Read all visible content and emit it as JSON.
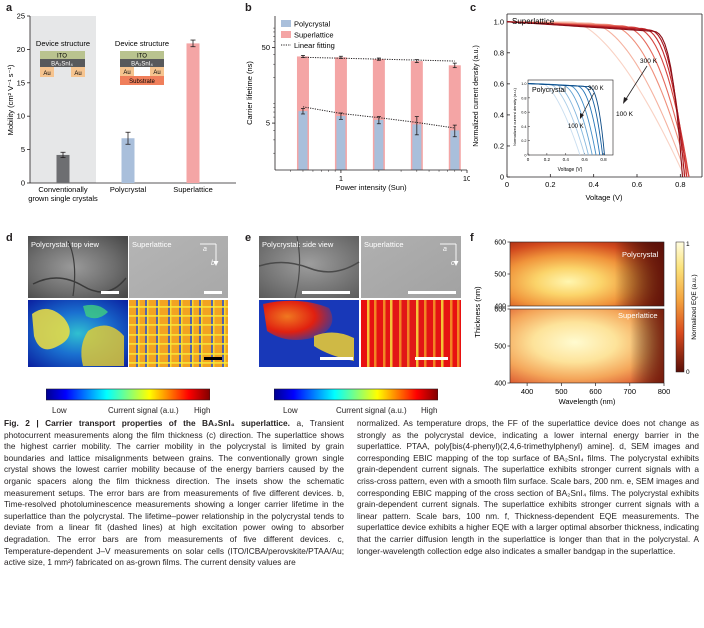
{
  "panel_letters": [
    "a",
    "b",
    "c",
    "d",
    "e",
    "f"
  ],
  "panel_a": {
    "ylabel": "Mobility (cm² V⁻¹ s⁻¹)",
    "yticks": [
      "0",
      "5",
      "10",
      "15",
      "20",
      "25"
    ],
    "inset_left": {
      "title": "Device structure",
      "layers": [
        "ITO",
        "BA₂SnI₄",
        "Au",
        "Au"
      ]
    },
    "inset_right": {
      "title": "Device structure",
      "layers": [
        "ITO",
        "BA₂SnI₄",
        "Au",
        "Au",
        "Substrate"
      ]
    },
    "categories": [
      "Conventionally grown single crystals",
      "Polycrystal",
      "Superlattice"
    ],
    "category_lines": [
      [
        "Conventionally",
        "grown single crystals"
      ],
      [
        "Polycrystal"
      ],
      [
        "Superlattice"
      ]
    ]
  },
  "panel_b": {
    "ylabel": "Carrier lifetime (ns)",
    "xlabel": "Power intensity (Sun)",
    "yticks": [
      "5",
      "50"
    ],
    "xticks": [
      "1",
      "10"
    ],
    "legend": [
      "Polycrystal",
      "Superlattice",
      "Linear fitting"
    ]
  },
  "panel_c": {
    "ylabel": "Normalized current density (a.u.)",
    "xlabel": "Voltage (V)",
    "yticks": [
      "0",
      "0.2",
      "0.4",
      "0.6",
      "0.8",
      "1.0"
    ],
    "xticks": [
      "0",
      "0.2",
      "0.4",
      "0.6",
      "0.8"
    ],
    "label_main": "Superlattice",
    "arrow_main": [
      "300 K",
      "100 K"
    ],
    "inset": {
      "label": "Polycrystal",
      "ylabel": "Normalized current density (a.u.)",
      "xlabel": "Voltage (V)",
      "yticks": [
        "0",
        "0.2",
        "0.4",
        "0.6",
        "0.8",
        "1.0"
      ],
      "xticks": [
        "0",
        "0.2",
        "0.4",
        "0.6",
        "0.8"
      ],
      "arrow": [
        "300 K",
        "100 K"
      ]
    }
  },
  "panel_d": {
    "titles": [
      "Polycrystal: top view",
      "Superlattice"
    ],
    "axis_a": "a",
    "axis_b": "b"
  },
  "panel_e": {
    "titles": [
      "Polycrystal: side view",
      "Superlattice"
    ],
    "axis_a": "a",
    "axis_c": "c"
  },
  "colorbar_de": {
    "low": "Low",
    "mid": "Current signal (a.u.)",
    "high": "High"
  },
  "panel_f": {
    "ylabel": "Thickness (nm)",
    "xlabel": "Wavelength (nm)",
    "yticks_top": [
      "600",
      "500",
      "400"
    ],
    "yticks_bottom": [
      "600",
      "500",
      "400"
    ],
    "xticks": [
      "400",
      "500",
      "600",
      "700",
      "800"
    ],
    "label_top": "Polycrystal",
    "label_bottom": "Superlattice",
    "cbar_label": "Normalized EQE (a.u.)",
    "cbar_top": "1",
    "cbar_bottom": "0"
  },
  "caption": {
    "title": "Fig. 2 | Carrier transport properties of the BA₂SnI₄ superlattice.",
    "left": "a, Transient photocurrent measurements along the film thickness (c) direction. The superlattice shows the highest carrier mobility. The carrier mobility in the polycrystal is limited by grain boundaries and lattice misalignments between grains. The conventionally grown single crystal shows the lowest carrier mobility because of the energy barriers caused by the organic spacers along the film thickness direction. The insets show the schematic measurement setups. The error bars are from measurements of five different devices. b, Time-resolved photoluminescence measurements showing a longer carrier lifetime in the superlattice than the polycrystal. The lifetime–power relationship in the polycrystal tends to deviate from a linear fit (dashed lines) at high excitation power owing to absorber degradation. The error bars are from measurements of five different devices. c, Temperature-dependent J–V measurements on solar cells (ITO/ICBA/perovskite/PTAA/Au; active size, 1 mm²) fabricated on as-grown films. The current density values are",
    "right": "normalized. As temperature drops, the FF of the superlattice device does not change as strongly as the polycrystal device, indicating a lower internal energy barrier in the superlattice. PTAA, poly[bis(4-phenyl)(2,4,6-trimethylphenyl) amine]. d, SEM images and corresponding EBIC mapping of the top surface of BA₂SnI₄ films. The polycrystal exhibits grain-dependent current signals. The superlattice exhibits stronger current signals with a criss-cross pattern, even with a smooth film surface. Scale bars, 200 nm. e, SEM images and corresponding EBIC mapping of the cross section of BA₂SnI₄ films. The polycrystal exhibits grain-dependent current signals. The superlattice exhibits stronger current signals with a linear pattern. Scale bars, 100 nm. f, Thickness-dependent EQE measurements. The superlattice device exhibits a higher EQE with a larger optimal absorber thickness, indicating that the carrier diffusion length in the superlattice is longer than that in the polycrystal. A longer-wavelength collection edge also indicates a smaller bandgap in the superlattice."
  },
  "chart_data": [
    {
      "type": "bar",
      "panel": "a",
      "categories": [
        "Conventionally grown single crystals",
        "Polycrystal",
        "Superlattice"
      ],
      "values": [
        4.2,
        6.7,
        20.9
      ],
      "errors": [
        0.4,
        0.9,
        0.5
      ],
      "ylabel": "Mobility (cm² V⁻¹ s⁻¹)",
      "ylim": [
        0,
        25
      ],
      "colors": [
        "#6d6e71",
        "#a9bfdb",
        "#f4a5a5"
      ]
    },
    {
      "type": "bar",
      "panel": "b",
      "xlabel": "Power intensity (Sun)",
      "ylabel": "Carrier lifetime (ns)",
      "yscale": "log",
      "xscale": "log",
      "xlim": [
        0.3,
        10
      ],
      "ylim": [
        1.2,
        130
      ],
      "x": [
        0.5,
        1.0,
        2.0,
        4.0,
        8.0
      ],
      "series": [
        {
          "name": "Polycrystal",
          "values": [
            7.2,
            6.2,
            5.5,
            4.8,
            4.0
          ],
          "errors": [
            0.6,
            0.6,
            0.6,
            1.3,
            0.7
          ],
          "color": "#a9bfdb"
        },
        {
          "name": "Superlattice",
          "values": [
            38,
            37,
            35,
            33,
            29
          ],
          "errors": [
            1.2,
            1.2,
            1.2,
            1.5,
            2.0
          ],
          "color": "#f4a5a5"
        }
      ],
      "fits": [
        {
          "name": "Linear fitting",
          "values": [
            8.2,
            6.7,
            5.9,
            5.1,
            4.3
          ]
        },
        {
          "name": "Linear fitting",
          "values": [
            37,
            36,
            35,
            34,
            33
          ]
        }
      ]
    },
    {
      "type": "line",
      "panel": "c",
      "xlabel": "Voltage (V)",
      "ylabel": "Normalized current density (a.u.)",
      "xlim": [
        0,
        0.9
      ],
      "ylim": [
        0,
        1.05
      ],
      "series_voc": [
        0.82,
        0.83,
        0.84,
        0.84,
        0.84,
        0.83,
        0.82,
        0.81
      ],
      "series_knee": [
        0.3,
        0.38,
        0.46,
        0.52,
        0.57,
        0.61,
        0.64,
        0.66
      ]
    },
    {
      "type": "line",
      "panel": "c-inset",
      "xlabel": "Voltage (V)",
      "ylabel": "Normalized current density (a.u.)",
      "xlim": [
        0,
        0.9
      ],
      "ylim": [
        0,
        1.05
      ],
      "series_voc": [
        0.55,
        0.6,
        0.64,
        0.68,
        0.72,
        0.76,
        0.79,
        0.81
      ],
      "series_knee": [
        0.15,
        0.22,
        0.28,
        0.35,
        0.42,
        0.5,
        0.57,
        0.63
      ]
    },
    {
      "type": "heatmap",
      "panel": "f",
      "xlabel": "Wavelength (nm)",
      "ylabel": "Thickness (nm)",
      "xlim": [
        350,
        800
      ],
      "ylim": [
        400,
        600
      ],
      "maps": [
        "Polycrystal",
        "Superlattice"
      ]
    }
  ]
}
